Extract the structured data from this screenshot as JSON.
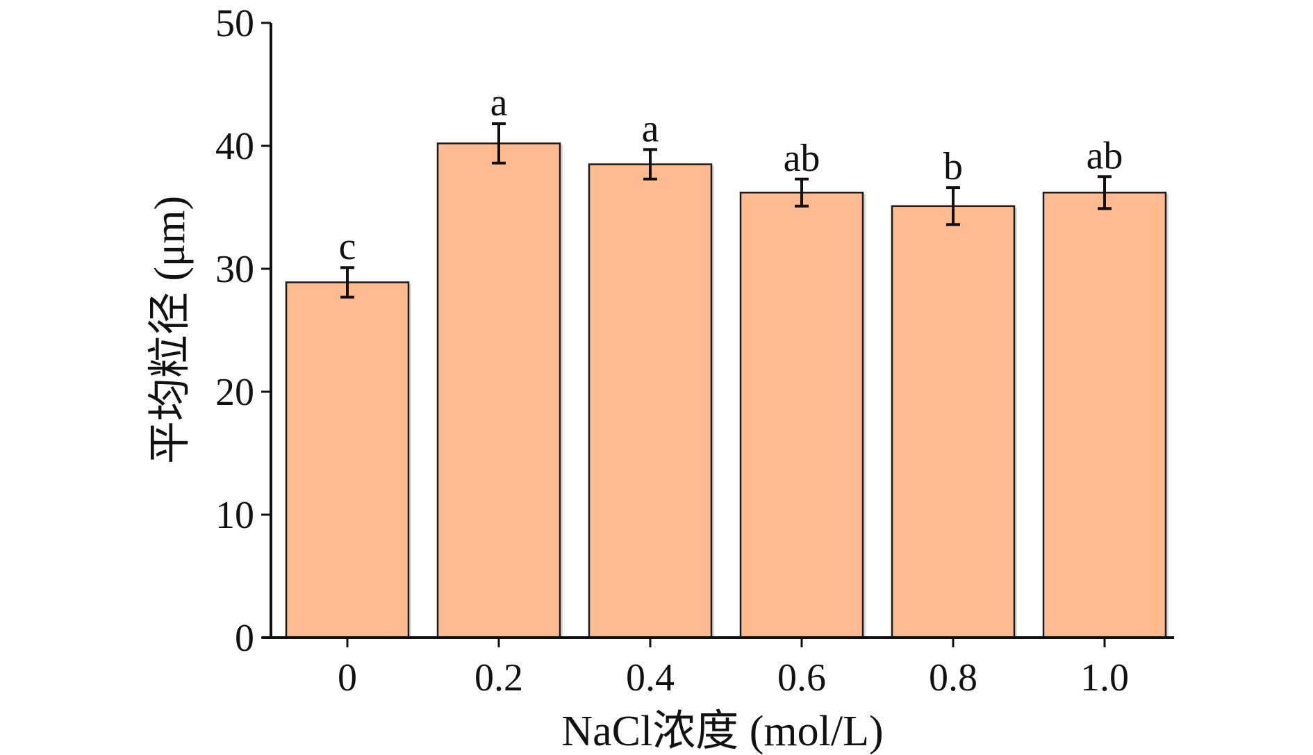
{
  "chart_data": {
    "type": "bar",
    "categories": [
      "0",
      "0.2",
      "0.4",
      "0.6",
      "0.8",
      "1.0"
    ],
    "values": [
      28.9,
      40.2,
      38.5,
      36.2,
      35.1,
      36.2
    ],
    "errors": [
      1.2,
      1.6,
      1.2,
      1.1,
      1.5,
      1.3
    ],
    "significance_letters": [
      "c",
      "a",
      "a",
      "ab",
      "b",
      "ab"
    ],
    "xlabel": "NaCl浓度 (mol/L)",
    "ylabel": "平均粒径 (μm)",
    "ylim": [
      0,
      50
    ],
    "yticks": [
      "0",
      "10",
      "20",
      "30",
      "40",
      "50"
    ],
    "bar_color": "#fdbb8f",
    "grid": false,
    "legend": "none"
  }
}
